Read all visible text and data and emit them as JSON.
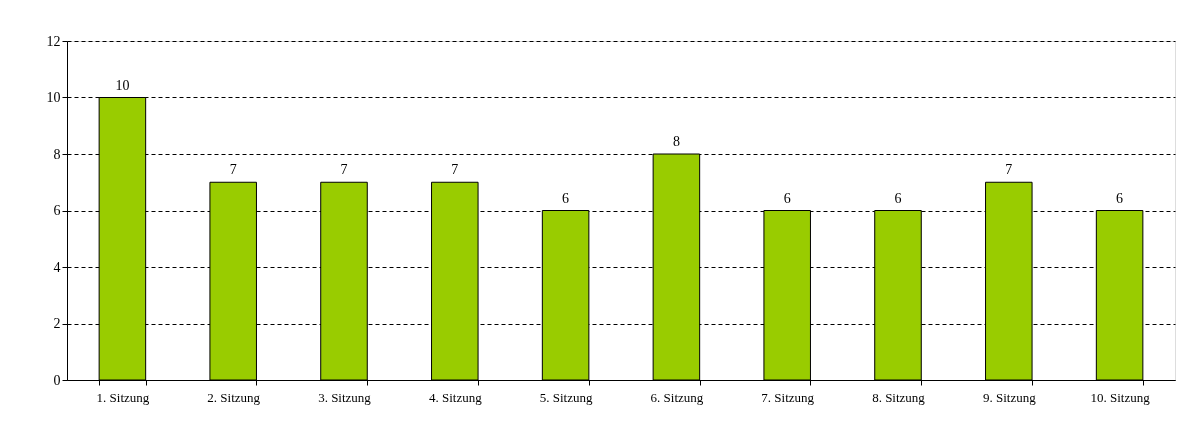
{
  "chart_data": {
    "type": "bar",
    "categories": [
      "1. Sitzung",
      "2. Sitzung",
      "3. Sitzung",
      "4. Sitzung",
      "5. Sitzung",
      "6. Sitzung",
      "7. Sitzung",
      "8. Sitzung",
      "9. Sitzung",
      "10. Sitzung"
    ],
    "values": [
      10,
      7,
      7,
      7,
      6,
      8,
      6,
      6,
      7,
      6
    ],
    "color": "#99cc00",
    "ylim": [
      0,
      12
    ],
    "yticks": [
      0,
      2,
      4,
      6,
      8,
      10,
      12
    ],
    "grid": "y",
    "data_labels": true
  }
}
